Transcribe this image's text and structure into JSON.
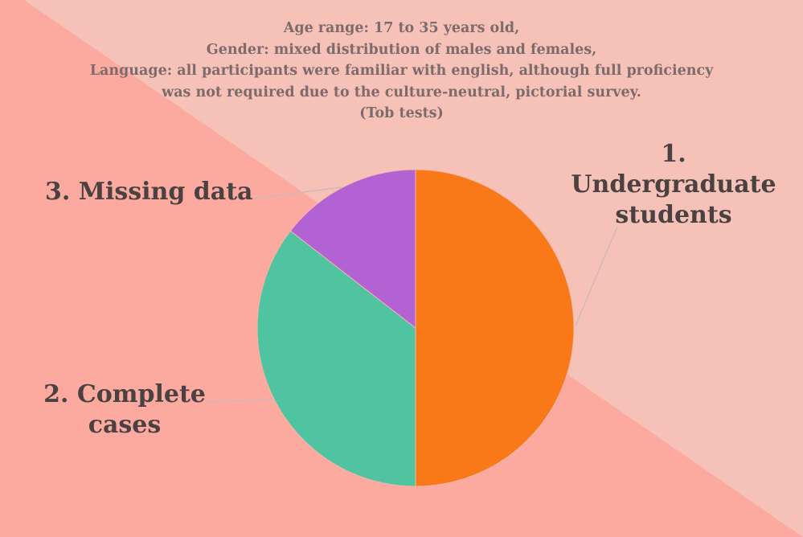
{
  "chart_data": {
    "type": "pie",
    "subtitle_lines": [
      "Age range: 17 to 35 years old,",
      "Gender: mixed distribution of males and females,",
      "Language: all participants were familiar with english, although full proficiency",
      "was not required due to the culture-neutral, pictorial survey.",
      "(Tob tests)"
    ],
    "slices": [
      {
        "label_lines": [
          "1.",
          "Undergraduate",
          "students"
        ],
        "value": 50,
        "color": "#f97818"
      },
      {
        "label_lines": [
          "2. Complete",
          "cases"
        ],
        "value": 35.5,
        "color": "#50c4a0"
      },
      {
        "label_lines": [
          "3. Missing data"
        ],
        "value": 14.5,
        "color": "#b362d4"
      }
    ]
  },
  "colors": {
    "background_light": "#f6c2b8",
    "background_dark": "#fcaaa0",
    "label_text": "#4a4242",
    "subtitle_text": "#7d6b6b",
    "leader_line": "#c9b8b8"
  }
}
